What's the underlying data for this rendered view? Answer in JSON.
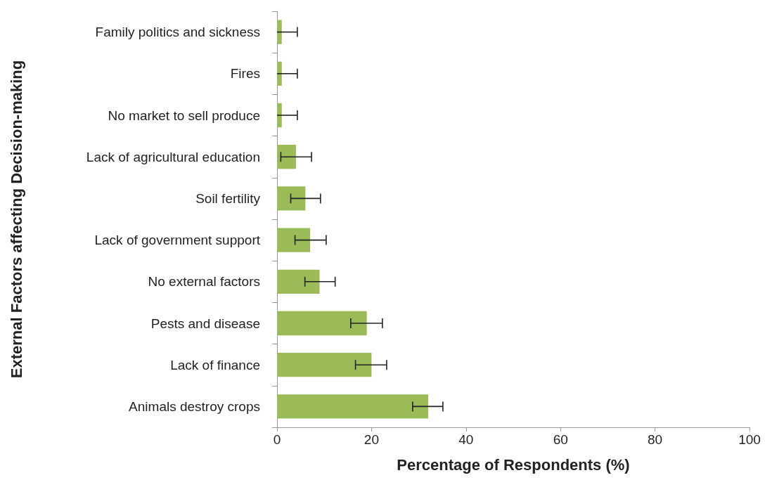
{
  "chart_data": {
    "type": "bar",
    "orientation": "horizontal",
    "categories": [
      "Family politics and sickness",
      "Fires",
      "No market to sell produce",
      "Lack of agricultural education",
      "Soil fertility",
      "Lack of government support",
      "No external factors",
      "Pests and disease",
      "Lack of finance",
      "Animals destroy crops"
    ],
    "values": [
      1,
      1,
      1,
      4,
      6,
      7,
      9,
      19,
      20,
      32
    ],
    "errors": [
      [
        0,
        4.3
      ],
      [
        0,
        4.3
      ],
      [
        0,
        4.3
      ],
      [
        0.8,
        7.3
      ],
      [
        2.9,
        9.2
      ],
      [
        3.8,
        10.4
      ],
      [
        5.9,
        12.3
      ],
      [
        15.6,
        22.3
      ],
      [
        16.6,
        23.2
      ],
      [
        28.7,
        35.1
      ]
    ],
    "color": "#9bbb59",
    "xlim": [
      0,
      100
    ],
    "xticks": [
      0,
      20,
      40,
      60,
      80,
      100
    ],
    "xlabel": "Percentage of Respondents (%)",
    "ylabel": "External Factors affecting Decision-making",
    "grid": false
  }
}
